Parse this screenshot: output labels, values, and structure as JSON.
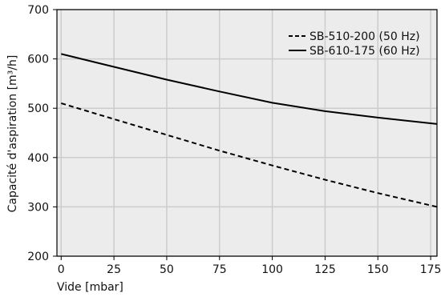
{
  "chart_data": {
    "type": "line",
    "xlabel": "Vide [mbar]",
    "ylabel": "Capacité d'aspiration [m³/h]",
    "xlim": [
      -2,
      178
    ],
    "ylim": [
      200,
      700
    ],
    "xticks": [
      0,
      25,
      50,
      75,
      100,
      125,
      150,
      175
    ],
    "yticks": [
      200,
      300,
      400,
      500,
      600,
      700
    ],
    "grid": true,
    "legend_position": "top-right",
    "series": [
      {
        "name": "SB-510-200 (50 Hz)",
        "style": "dashed",
        "color": "#000000",
        "x": [
          0,
          25,
          50,
          75,
          100,
          125,
          150,
          178
        ],
        "y": [
          510,
          478,
          446,
          414,
          384,
          355,
          328,
          300
        ]
      },
      {
        "name": "SB-610-175 (60 Hz)",
        "style": "solid",
        "color": "#000000",
        "x": [
          0,
          25,
          50,
          75,
          100,
          125,
          150,
          178
        ],
        "y": [
          610,
          584,
          558,
          534,
          511,
          494,
          481,
          468
        ]
      }
    ]
  }
}
